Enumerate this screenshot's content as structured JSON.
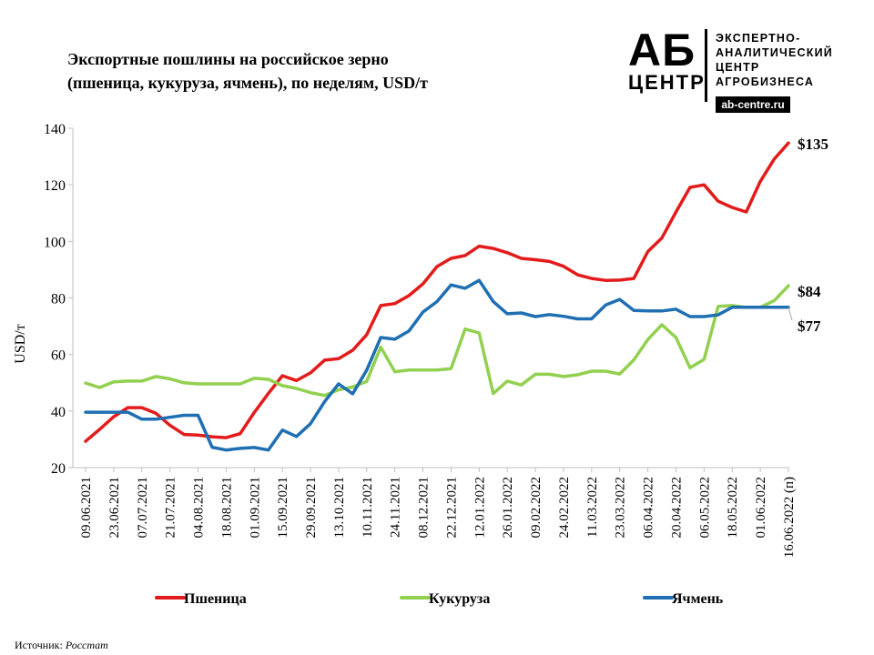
{
  "title_line1": "Экспортные  пошлины на российское зерно",
  "title_line2": "(пшеница, кукуруза, ячмень), по неделям, USD/т",
  "logo": {
    "big": "АБ",
    "small": "ЦЕНТР",
    "line1": "ЭКСПЕРТНО-",
    "line2": "АНАЛИТИЧЕСКИЙ",
    "line3": "ЦЕНТР",
    "line4": "АГРОБИЗНЕСА",
    "url": "ab-centre.ru"
  },
  "source_label": "Источник: ",
  "source_value": "Росстат",
  "colors": {
    "wheat": "#e31b1b",
    "corn": "#92d050",
    "barley": "#1f6fb2"
  },
  "chart_data": {
    "type": "line",
    "title": "Экспортные  пошлины на российское зерно (пшеница, кукуруза, ячмень), по неделям, USD/т",
    "ylabel": "USD/т",
    "xlabel": "",
    "ylim": [
      20,
      140
    ],
    "yticks": [
      20,
      40,
      60,
      80,
      100,
      120,
      140
    ],
    "grid": false,
    "legend": "bottom",
    "x_tick_labels": [
      "09.06.2021",
      "23.06.2021",
      "07.07.2021",
      "21.07.2021",
      "04.08.2021",
      "18.08.2021",
      "01.09.2021",
      "15.09.2021",
      "29.09.2021",
      "13.10.2021",
      "10.11.2021",
      "24.11.2021",
      "08.12.2021",
      "22.12.2021",
      "12.01.2022",
      "26.01.2022",
      "09.02.2022",
      "24.02.2022",
      "11.03.2022",
      "23.03.2022",
      "06.04.2022",
      "20.04.2022",
      "06.05.2022",
      "18.05.2022",
      "01.06.2022",
      "16.06.2022 (п)"
    ],
    "tick_every": 2,
    "series": [
      {
        "name": "Пшеница",
        "end_label": "$135",
        "values": [
          29.3,
          33.5,
          38.0,
          41.2,
          41.2,
          39.2,
          35.0,
          31.7,
          31.5,
          30.9,
          30.6,
          32.0,
          39.5,
          46.2,
          52.5,
          50.8,
          53.5,
          58.0,
          58.5,
          61.5,
          67.0,
          77.3,
          78.0,
          80.8,
          85.0,
          91.1,
          94.0,
          95.0,
          98.3,
          97.5,
          96.0,
          94.0,
          93.5,
          92.9,
          91.2,
          88.2,
          86.9,
          86.2,
          86.3,
          86.9,
          96.4,
          101.2,
          110.4,
          119.1,
          120.0,
          114.2,
          112.0,
          110.4,
          121.2,
          129.2,
          134.8
        ]
      },
      {
        "name": "Кукуруза",
        "end_label": "$84",
        "values": [
          49.9,
          48.3,
          50.3,
          50.6,
          50.6,
          52.2,
          51.4,
          50.0,
          49.6,
          49.6,
          49.6,
          49.6,
          51.6,
          51.2,
          49.0,
          48.0,
          46.5,
          45.5,
          47.5,
          48.5,
          50.5,
          62.6,
          53.9,
          54.5,
          54.5,
          54.5,
          55.0,
          69.0,
          67.6,
          46.2,
          50.6,
          49.2,
          53.0,
          53.0,
          52.2,
          52.8,
          54.1,
          54.1,
          53.1,
          58.1,
          65.3,
          70.5,
          66.0,
          55.3,
          58.3,
          77.0,
          77.3,
          76.7,
          76.7,
          79.1,
          84.3
        ]
      },
      {
        "name": "Ячмень",
        "end_label": "$77",
        "values": [
          39.6,
          39.6,
          39.6,
          39.6,
          37.1,
          37.1,
          37.8,
          38.5,
          38.5,
          27.2,
          26.2,
          26.8,
          27.1,
          26.2,
          33.3,
          31.0,
          35.5,
          43.3,
          49.6,
          46.1,
          54.5,
          66.0,
          65.4,
          68.3,
          75.0,
          78.7,
          84.6,
          83.4,
          86.2,
          78.7,
          74.4,
          74.7,
          73.4,
          74.1,
          73.5,
          72.6,
          72.6,
          77.5,
          79.5,
          75.6,
          75.4,
          75.4,
          76.0,
          73.4,
          73.4,
          74.0,
          76.7,
          76.7,
          76.7,
          76.7,
          76.7
        ]
      }
    ]
  }
}
